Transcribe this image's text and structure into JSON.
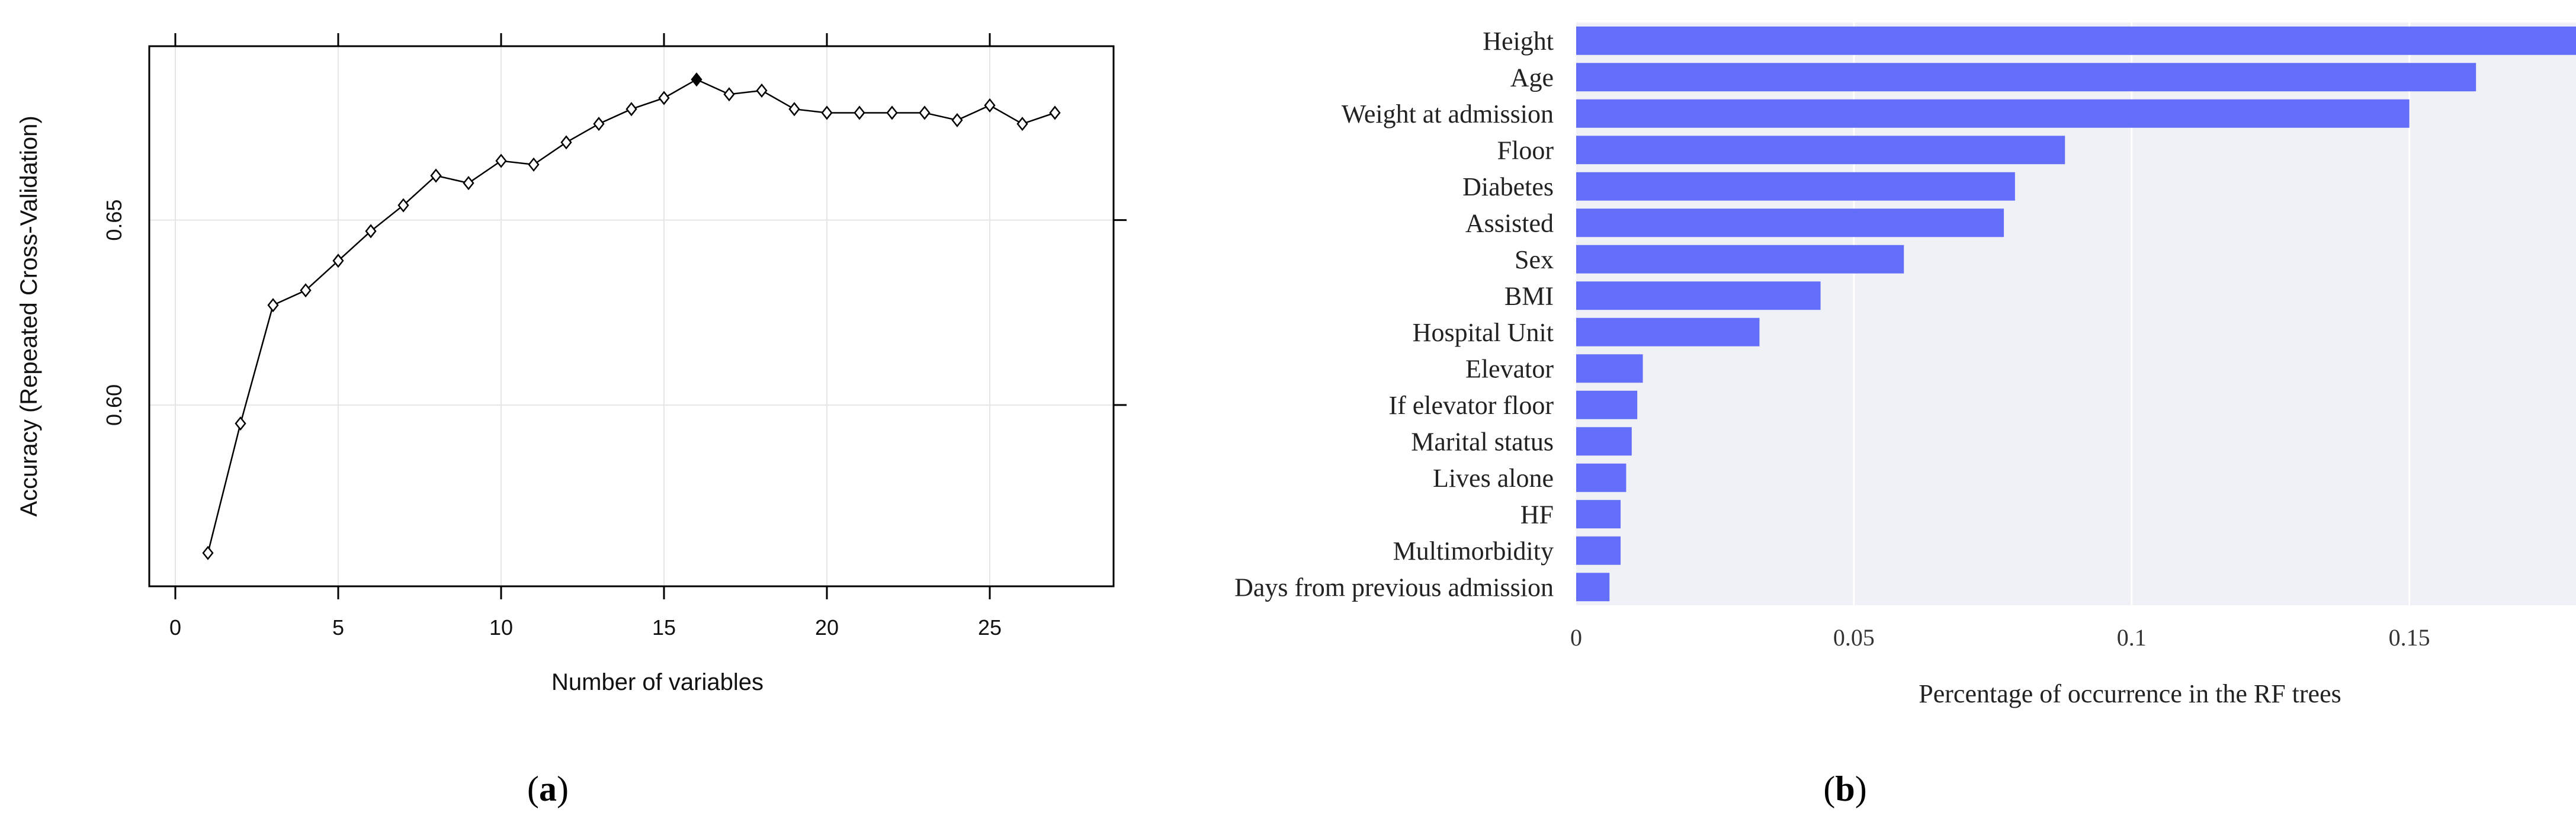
{
  "chart_data": [
    {
      "type": "line",
      "panel": "a",
      "caption_parts": [
        "(",
        "a",
        ")"
      ],
      "xlabel": "Number of variables",
      "ylabel": "Accuracy (Repeated Cross-Validation)",
      "x": [
        1,
        2,
        3,
        4,
        5,
        6,
        7,
        8,
        9,
        10,
        11,
        12,
        13,
        14,
        15,
        16,
        17,
        18,
        19,
        20,
        21,
        22,
        23,
        24,
        25,
        26,
        27
      ],
      "y": [
        0.56,
        0.595,
        0.627,
        0.631,
        0.639,
        0.647,
        0.654,
        0.662,
        0.66,
        0.666,
        0.665,
        0.671,
        0.676,
        0.68,
        0.683,
        0.688,
        0.684,
        0.685,
        0.68,
        0.679,
        0.679,
        0.679,
        0.679,
        0.677,
        0.681,
        0.676,
        0.679
      ],
      "highlight_x": 16,
      "xlim": [
        -0.8,
        28.8
      ],
      "ylim": [
        0.551,
        0.697
      ],
      "xticks": [
        0,
        5,
        10,
        15,
        20,
        25
      ],
      "xtick_labels": [
        "0",
        "5",
        "10",
        "15",
        "20",
        "25"
      ],
      "yticks": [
        0.6,
        0.65
      ],
      "ytick_labels": [
        "0.60",
        "0.65"
      ],
      "grid": true,
      "colors": {
        "line": "#000000",
        "grid": "#e6e6e6",
        "frame": "#000000"
      }
    },
    {
      "type": "bar",
      "orientation": "horizontal",
      "panel": "b",
      "caption_parts": [
        "(",
        "b",
        ")"
      ],
      "xlabel": "Percentage of occurrence in the RF trees",
      "categories": [
        "Height",
        "Age",
        "Weight at admission",
        "Floor",
        "Diabetes",
        "Assisted",
        "Sex",
        "BMI",
        "Hospital Unit",
        "Elevator",
        "If elevator floor",
        "Marital status",
        "Lives alone",
        "HF",
        "Multimorbidity",
        "Days from previous admission"
      ],
      "values": [
        0.18,
        0.162,
        0.15,
        0.088,
        0.079,
        0.077,
        0.059,
        0.044,
        0.033,
        0.012,
        0.011,
        0.01,
        0.009,
        0.008,
        0.008,
        0.006
      ],
      "xlim": [
        0,
        0.18
      ],
      "xticks": [
        0,
        0.05,
        0.1,
        0.15
      ],
      "xtick_labels": [
        "0",
        "0.05",
        "0.1",
        "0.15"
      ],
      "grid": true,
      "colors": {
        "bar": "#636efa",
        "background": "#f0f1f6",
        "grid": "#ffffff"
      }
    }
  ]
}
